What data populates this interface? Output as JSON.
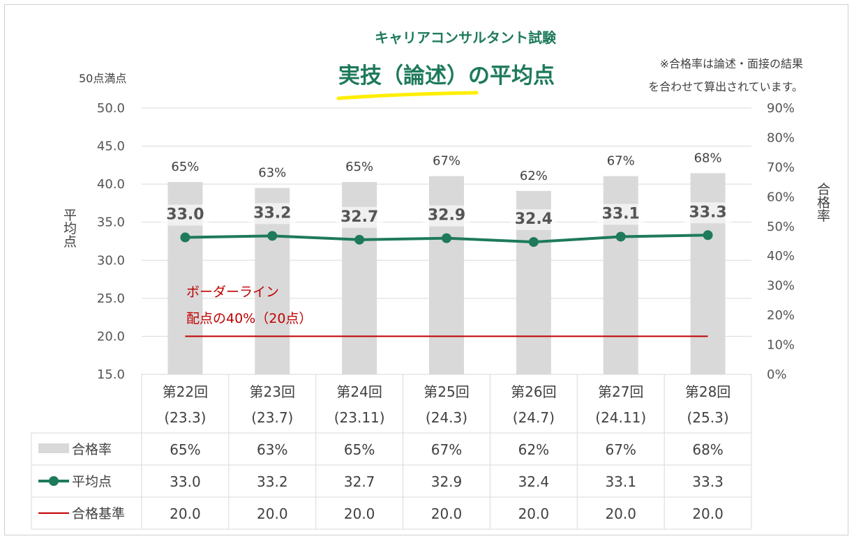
{
  "title": {
    "subtitle": "キャリアコンサルタント試験",
    "main_part1": "実技（論述）",
    "main_part2": "の平均点"
  },
  "note": {
    "line1": "※合格率は論述・面接の結果",
    "line2": "を合わせて算出されています。"
  },
  "axis": {
    "left_unit": "50点満点",
    "left_label": "平均点",
    "right_label": "合格率"
  },
  "border_annotation": {
    "line1": "ボーダーライン",
    "line2": "配点の40%（20点）"
  },
  "colors": {
    "bar": "#d9d9d9",
    "line": "#1e7a5a",
    "border": "#c00000",
    "title": "#1e7a5a",
    "highlight": "#ffee00"
  },
  "chart_data": {
    "type": "bar",
    "categories": [
      "第22回(23.3)",
      "第23回(23.7)",
      "第24回(23.11)",
      "第25回(24.3)",
      "第26回(24.7)",
      "第27回(24.11)",
      "第28回(25.3)"
    ],
    "category_lines": [
      [
        "第22回",
        "(23.3)"
      ],
      [
        "第23回",
        "(23.7)"
      ],
      [
        "第24回",
        "(23.11)"
      ],
      [
        "第25回",
        "(24.3)"
      ],
      [
        "第26回",
        "(24.7)"
      ],
      [
        "第27回",
        "(24.11)"
      ],
      [
        "第28回",
        "(25.3)"
      ]
    ],
    "series": [
      {
        "name": "合格率",
        "type": "bar",
        "axis": "right",
        "values": [
          65,
          63,
          65,
          67,
          62,
          67,
          68
        ],
        "labels": [
          "65%",
          "63%",
          "65%",
          "67%",
          "62%",
          "67%",
          "68%"
        ]
      },
      {
        "name": "平均点",
        "type": "line",
        "axis": "left",
        "values": [
          33.0,
          33.2,
          32.7,
          32.9,
          32.4,
          33.1,
          33.3
        ],
        "labels": [
          "33.0",
          "33.2",
          "32.7",
          "32.9",
          "32.4",
          "33.1",
          "33.3"
        ]
      },
      {
        "name": "合格基準",
        "type": "line",
        "axis": "left",
        "values": [
          20.0,
          20.0,
          20.0,
          20.0,
          20.0,
          20.0,
          20.0
        ],
        "labels": [
          "20.0",
          "20.0",
          "20.0",
          "20.0",
          "20.0",
          "20.0",
          "20.0"
        ]
      }
    ],
    "left_axis": {
      "min": 15,
      "max": 50,
      "ticks": [
        "15.0",
        "20.0",
        "25.0",
        "30.0",
        "35.0",
        "40.0",
        "45.0",
        "50.0"
      ]
    },
    "right_axis": {
      "min": 0,
      "max": 90,
      "ticks": [
        "0%",
        "10%",
        "20%",
        "30%",
        "40%",
        "50%",
        "60%",
        "70%",
        "80%",
        "90%"
      ]
    },
    "grid": true,
    "legend": "data-table"
  }
}
